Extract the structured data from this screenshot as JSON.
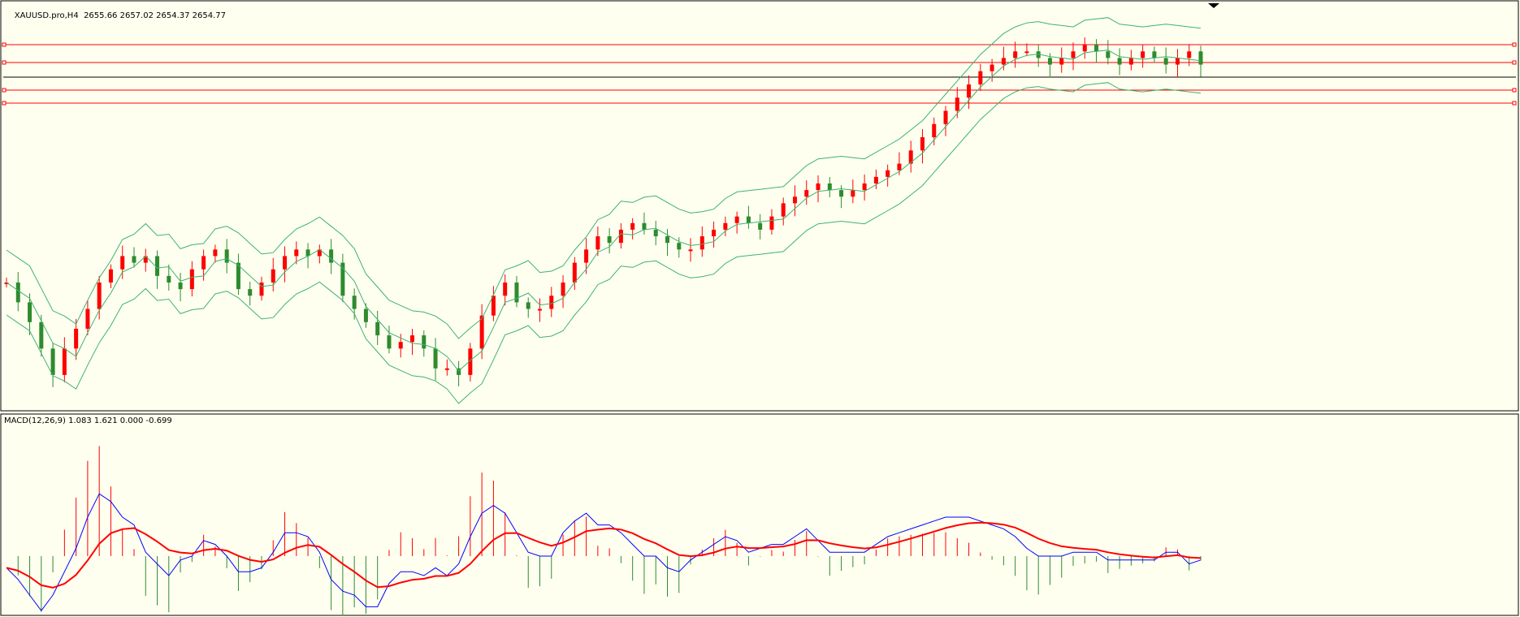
{
  "chart": {
    "symbol_label": "XAUUSD.pro,H4",
    "ohlc_label": "2655.66 2657.02 2654.37 2654.77",
    "indicator_label": "MACD(12,26,9) 1.083 1.621 0.000 -0.699"
  },
  "colors": {
    "background": "#fffff0",
    "bull_candle": "#2e8b2e",
    "bear_candle": "#ff0000",
    "bollinger": "#3cb371",
    "level_lines": "#ff0000",
    "current_price_line": "#000000",
    "macd_line": "#0000ff",
    "signal_line": "#ff0000",
    "hist_positive": "#ff0000",
    "hist_negative": "#2e8b2e"
  },
  "chart_data": [
    {
      "type": "candlestick",
      "title": "XAUUSD.pro,H4",
      "last_bar_ohlc": {
        "open": 2655.66,
        "high": 2657.02,
        "low": 2654.37,
        "close": 2654.77
      },
      "overlays": [
        "bollinger_bands"
      ],
      "horizontal_levels_count": 4,
      "price_series_relative": [
        0.3,
        0.24,
        0.18,
        0.1,
        0.02,
        0.1,
        0.16,
        0.22,
        0.3,
        0.34,
        0.38,
        0.36,
        0.38,
        0.32,
        0.3,
        0.28,
        0.34,
        0.38,
        0.4,
        0.36,
        0.28,
        0.26,
        0.3,
        0.34,
        0.38,
        0.4,
        0.38,
        0.4,
        0.36,
        0.26,
        0.22,
        0.18,
        0.14,
        0.1,
        0.12,
        0.14,
        0.1,
        0.04,
        0.04,
        0.02,
        0.1,
        0.2,
        0.26,
        0.3,
        0.24,
        0.22,
        0.22,
        0.26,
        0.3,
        0.36,
        0.4,
        0.44,
        0.42,
        0.46,
        0.48,
        0.46,
        0.44,
        0.42,
        0.4,
        0.4,
        0.44,
        0.46,
        0.48,
        0.5,
        0.48,
        0.46,
        0.5,
        0.54,
        0.56,
        0.58,
        0.6,
        0.58,
        0.56,
        0.58,
        0.6,
        0.62,
        0.64,
        0.66,
        0.7,
        0.74,
        0.78,
        0.82,
        0.86,
        0.9,
        0.94,
        0.96,
        0.98,
        1.0,
        1.0,
        0.98,
        0.96,
        0.98,
        1.0,
        1.02,
        1.0,
        0.98,
        0.96,
        0.98,
        1.0,
        0.98,
        0.96,
        0.98,
        1.0,
        0.96
      ]
    },
    {
      "type": "line",
      "title": "MACD(12,26,9)",
      "values": {
        "histogram": 1.083,
        "macd": 1.621,
        "zero": 0.0,
        "signal": -0.699
      },
      "series": [
        {
          "name": "MACD"
        },
        {
          "name": "Signal"
        },
        {
          "name": "Histogram"
        }
      ]
    }
  ]
}
